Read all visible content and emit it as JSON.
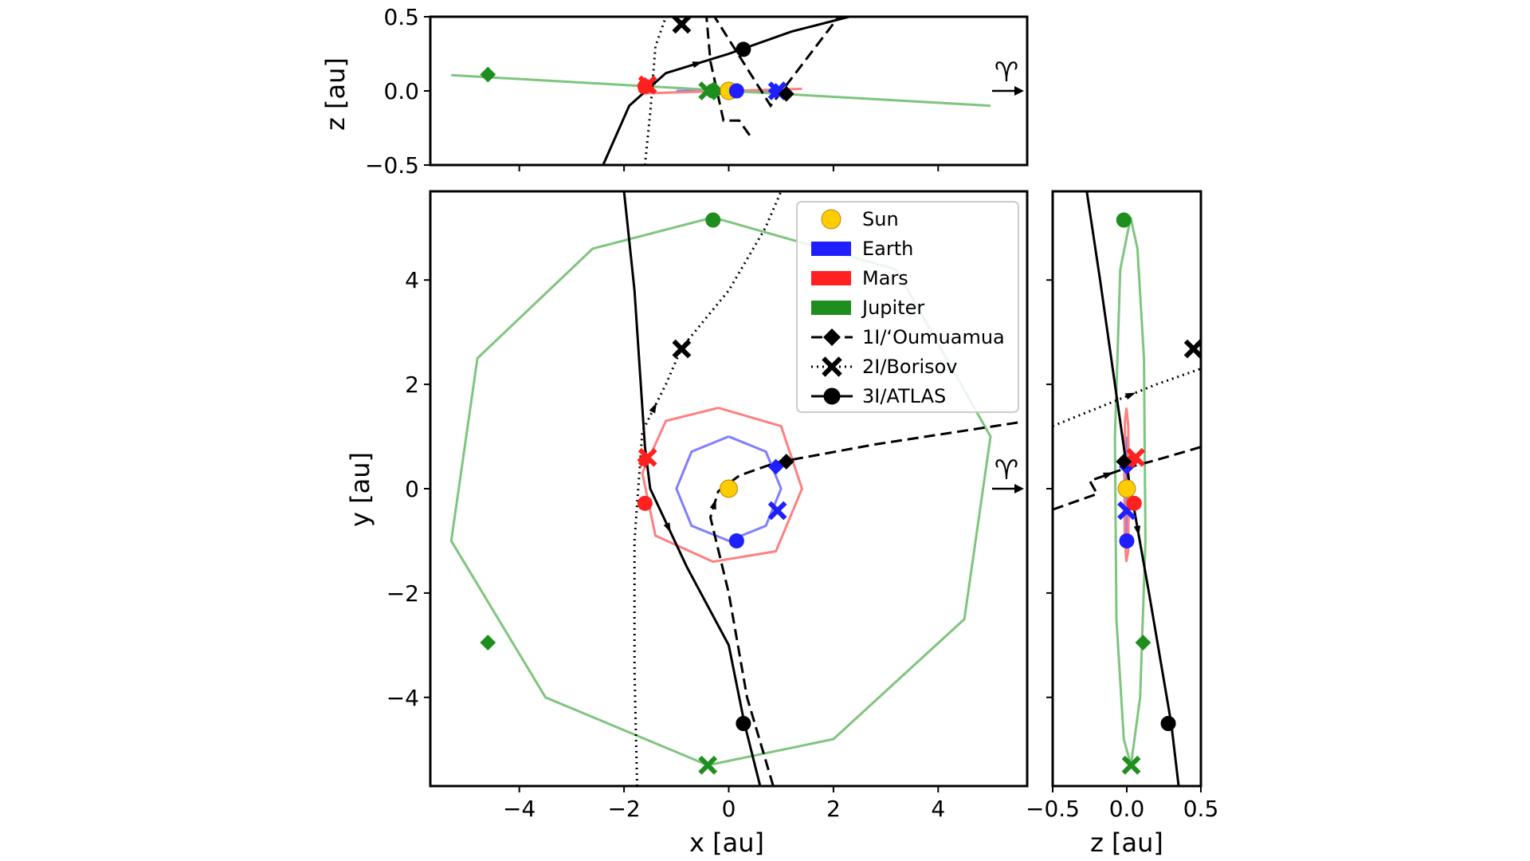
{
  "chart_data": {
    "type": "scatter",
    "panels": [
      {
        "name": "xz",
        "xlabel": "",
        "ylabel": "z [au]",
        "xlim": [
          -5.7,
          5.7
        ],
        "ylim": [
          -0.5,
          0.5
        ],
        "y_ticks": [
          "0.5",
          "0.0",
          "−0.5"
        ]
      },
      {
        "name": "xy",
        "xlabel": "x [au]",
        "ylabel": "y [au]",
        "xlim": [
          -5.7,
          5.7
        ],
        "ylim": [
          -5.7,
          5.7
        ],
        "x_ticks": [
          "−4",
          "−2",
          "0",
          "2",
          "4"
        ],
        "y_ticks": [
          "4",
          "2",
          "0",
          "−2",
          "−4"
        ]
      },
      {
        "name": "zy",
        "xlabel": "z [au]",
        "ylabel": "",
        "xlim": [
          -0.5,
          0.5
        ],
        "ylim": [
          -5.7,
          5.7
        ],
        "x_ticks": [
          "−0.5",
          "0.0",
          "0.5"
        ]
      }
    ],
    "direction_marker": {
      "symbol": "♈︎"
    },
    "legend": {
      "placement": "top-right",
      "entries": [
        {
          "label": "Sun",
          "color": "#ffcc00",
          "kind": "circle"
        },
        {
          "label": "Earth",
          "color": "#1f1fff",
          "kind": "patch"
        },
        {
          "label": "Mars",
          "color": "#ff2020",
          "kind": "patch"
        },
        {
          "label": "Jupiter",
          "color": "#1e8f1e",
          "kind": "patch"
        },
        {
          "label": "1I/‘Oumuamua",
          "color": "#000000",
          "kind": "line-dashed-diamond"
        },
        {
          "label": "2I/Borisov",
          "color": "#000000",
          "kind": "line-dotted-x"
        },
        {
          "label": "3I/ATLAS",
          "color": "#000000",
          "kind": "line-solid-circle"
        }
      ]
    },
    "orbits": [
      {
        "name": "Earth",
        "color": "#7f7fff",
        "points": [
          [
            0,
            1
          ],
          [
            0.71,
            0.71
          ],
          [
            1,
            0
          ],
          [
            0.71,
            -0.71
          ],
          [
            0,
            -1
          ],
          [
            -0.71,
            -0.71
          ],
          [
            -1,
            0
          ],
          [
            -0.71,
            0.71
          ],
          [
            0,
            1
          ]
        ]
      },
      {
        "name": "Mars",
        "color": "#ff8080",
        "points": [
          [
            -0.2,
            1.55
          ],
          [
            1.0,
            1.2
          ],
          [
            1.4,
            0
          ],
          [
            0.9,
            -1.2
          ],
          [
            -0.3,
            -1.4
          ],
          [
            -1.4,
            -0.9
          ],
          [
            -1.65,
            0.3
          ],
          [
            -1.2,
            1.3
          ],
          [
            -0.2,
            1.55
          ]
        ]
      },
      {
        "name": "Jupiter",
        "color": "#7fc47f",
        "points": [
          [
            -0.3,
            5.2
          ],
          [
            3.2,
            4.2
          ],
          [
            5.0,
            1.0
          ],
          [
            4.5,
            -2.5
          ],
          [
            2.0,
            -4.8
          ],
          [
            -0.4,
            -5.3
          ],
          [
            -3.5,
            -4.0
          ],
          [
            -5.3,
            -1.0
          ],
          [
            -4.8,
            2.5
          ],
          [
            -2.6,
            4.6
          ],
          [
            -0.3,
            5.2
          ]
        ]
      }
    ],
    "trajectories": [
      {
        "name": "1I/‘Oumuamua",
        "style": "dashed",
        "xy": [
          [
            0.85,
            -5.7
          ],
          [
            0.35,
            -4.0
          ],
          [
            0.0,
            -2.0
          ],
          [
            -0.35,
            -0.55
          ],
          [
            -0.2,
            -0.05
          ],
          [
            0.2,
            0.25
          ],
          [
            0.9,
            0.5
          ],
          [
            2.8,
            0.85
          ],
          [
            5.6,
            1.28
          ]
        ],
        "xz": [
          [
            0.4,
            -0.3
          ],
          [
            0.2,
            -0.2
          ],
          [
            -0.1,
            -0.2
          ],
          [
            -0.35,
            0.2
          ],
          [
            -0.45,
            0.6
          ],
          [
            0.8,
            -0.1
          ],
          [
            2.1,
            0.5
          ]
        ],
        "zy": [
          [
            -0.5,
            -0.4
          ],
          [
            -0.2,
            -0.1
          ],
          [
            -0.25,
            0.15
          ],
          [
            0.0,
            0.4
          ],
          [
            0.2,
            0.55
          ],
          [
            0.5,
            0.8
          ]
        ]
      },
      {
        "name": "2I/Borisov",
        "style": "dotted",
        "xy": [
          [
            -1.75,
            -5.7
          ],
          [
            -1.8,
            -3.5
          ],
          [
            -1.8,
            -1.0
          ],
          [
            -1.65,
            1.1
          ],
          [
            -1.2,
            2.0
          ],
          [
            -0.9,
            2.7
          ],
          [
            0.0,
            3.8
          ],
          [
            0.7,
            5.0
          ],
          [
            1.0,
            5.7
          ]
        ],
        "xz": [
          [
            -1.6,
            -0.5
          ],
          [
            -1.5,
            -0.15
          ],
          [
            -1.4,
            0.3
          ],
          [
            -1.2,
            0.5
          ]
        ],
        "zy": [
          [
            -0.5,
            1.2
          ],
          [
            -0.15,
            1.6
          ],
          [
            0.2,
            2.0
          ],
          [
            0.5,
            2.3
          ]
        ]
      },
      {
        "name": "3I/ATLAS",
        "style": "solid",
        "xy": [
          [
            -2.0,
            5.7
          ],
          [
            -1.8,
            3.8
          ],
          [
            -1.6,
            0.8
          ],
          [
            -1.5,
            0.0
          ],
          [
            -0.8,
            -1.5
          ],
          [
            0.0,
            -3.0
          ],
          [
            0.3,
            -4.5
          ],
          [
            0.6,
            -5.7
          ]
        ],
        "xz": [
          [
            -2.4,
            -0.5
          ],
          [
            -1.9,
            -0.1
          ],
          [
            -1.2,
            0.12
          ],
          [
            0.0,
            0.25
          ],
          [
            1.2,
            0.4
          ],
          [
            2.3,
            0.5
          ]
        ],
        "zy": [
          [
            -0.27,
            5.7
          ],
          [
            -0.18,
            4.0
          ],
          [
            0.0,
            0.4
          ],
          [
            0.15,
            -2.0
          ],
          [
            0.3,
            -4.5
          ],
          [
            0.35,
            -5.7
          ]
        ]
      }
    ],
    "markers": [
      {
        "name": "Sun",
        "symbol": "circle",
        "color": "#ffcc00",
        "xy": [
          0,
          0
        ],
        "xz": [
          0,
          0
        ],
        "zy": [
          0,
          0
        ]
      },
      {
        "name": "Earth 1I",
        "symbol": "diamond",
        "color": "#1f1fff",
        "xy": [
          0.9,
          0.42
        ],
        "xz": [
          0.9,
          0
        ],
        "zy": [
          0.0,
          0.42
        ]
      },
      {
        "name": "Earth 2I",
        "symbol": "x",
        "color": "#1f1fff",
        "xy": [
          0.93,
          -0.42
        ],
        "xz": [
          0.93,
          0
        ],
        "zy": [
          0.0,
          -0.42
        ]
      },
      {
        "name": "Earth 3I",
        "symbol": "circle",
        "color": "#1f1fff",
        "xy": [
          0.15,
          -1.0
        ],
        "xz": [
          0.15,
          0
        ],
        "zy": [
          0.0,
          -1.0
        ]
      },
      {
        "name": "Mars 1I",
        "symbol": "diamond",
        "color": "#ff2020",
        "xy": [
          -1.6,
          0.55
        ],
        "xz": [
          -1.6,
          0.04
        ],
        "zy": [
          0.04,
          0.55
        ]
      },
      {
        "name": "Mars 2I",
        "symbol": "x",
        "color": "#ff2020",
        "xy": [
          -1.55,
          0.6
        ],
        "xz": [
          -1.55,
          0.04
        ],
        "zy": [
          0.06,
          0.6
        ]
      },
      {
        "name": "Mars 3I",
        "symbol": "circle",
        "color": "#ff2020",
        "xy": [
          -1.6,
          -0.28
        ],
        "xz": [
          -1.6,
          0.03
        ],
        "zy": [
          0.05,
          -0.28
        ]
      },
      {
        "name": "Jupiter 1I",
        "symbol": "diamond",
        "color": "#1e8f1e",
        "xy": [
          -4.6,
          -2.95
        ],
        "xz": [
          -4.6,
          0.11
        ],
        "zy": [
          0.11,
          -2.95
        ]
      },
      {
        "name": "Jupiter 2I",
        "symbol": "x",
        "color": "#1e8f1e",
        "xy": [
          -0.4,
          -5.3
        ],
        "xz": [
          -0.4,
          0.0
        ],
        "zy": [
          0.03,
          -5.3
        ]
      },
      {
        "name": "Jupiter 3I",
        "symbol": "circle",
        "color": "#1e8f1e",
        "xy": [
          -0.3,
          5.15
        ],
        "xz": [
          -0.3,
          0.0
        ],
        "zy": [
          -0.02,
          5.15
        ]
      },
      {
        "name": "1I now",
        "symbol": "diamond",
        "color": "#000000",
        "xy": [
          1.1,
          0.52
        ],
        "xz": [
          1.1,
          -0.02
        ],
        "zy": [
          -0.02,
          0.52
        ]
      },
      {
        "name": "2I now",
        "symbol": "x",
        "color": "#000000",
        "xy": [
          -0.9,
          2.68
        ],
        "xz": [
          -0.9,
          0.45
        ],
        "zy": [
          0.45,
          2.68
        ]
      },
      {
        "name": "3I now",
        "symbol": "circle",
        "color": "#000000",
        "xy": [
          0.28,
          -4.5
        ],
        "xz": [
          0.28,
          0.28
        ],
        "zy": [
          0.28,
          -4.5
        ]
      }
    ]
  }
}
